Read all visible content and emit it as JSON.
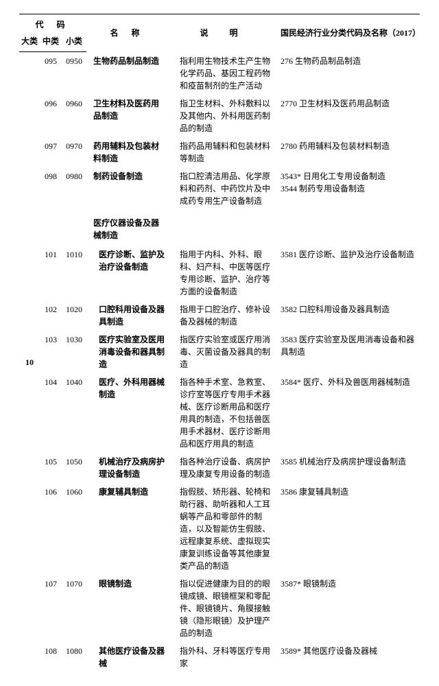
{
  "headers": {
    "code_group": "代 码",
    "da": "大类",
    "zhong": "中类",
    "xiao": "小类",
    "name": "名 称",
    "desc": "说 明",
    "ref": "国民经济行业分类代码及名称（2017）"
  },
  "big_category": "10",
  "rows": [
    {
      "zhong": "095",
      "xiao": "0950",
      "name": "生物药品制品制造",
      "desc": "　指利用生物技术生产生物化学药品、基因工程药物和疫苗制剂的生产活动",
      "ref": "276 生物药品制品制造",
      "cls": "name"
    },
    {
      "zhong": "096",
      "xiao": "0960",
      "name": "卫生材料及医药用品制造",
      "desc": "　指卫生材料、外科敷料以及其他内、外科用医药制品的制造",
      "ref": "2770 卫生材料及医药用品制造",
      "cls": "name"
    },
    {
      "zhong": "097",
      "xiao": "0970",
      "name": "药用辅料及包装材料制造",
      "desc": "　指药品用辅料和包装材料等制造",
      "ref": "2780 药用辅料及包装材料制造",
      "cls": "name"
    },
    {
      "zhong": "098",
      "xiao": "0980",
      "name": "制药设备制造",
      "desc": "　指口腔清洁用品、化学原料和药剂、中药饮片及中成药专用生产设备制造",
      "ref": "3543* 日用化工专用设备制造\n3544 制药专用设备制造",
      "cls": "name"
    },
    {
      "zhong": "",
      "xiao": "",
      "name": "医疗仪器设备及器械制造",
      "desc": "",
      "ref": "",
      "cls": "name",
      "section": true
    },
    {
      "zhong": "101",
      "xiao": "1010",
      "name": "医疗诊断、监护及治疗设备制造",
      "desc": "　指用于内科、外科、眼科、妇产科、中医等医疗专用诊断、监护、治疗等方面的设备制造",
      "ref": "3581 医疗诊断、监护及治疗设备制造",
      "cls": "name-sub"
    },
    {
      "zhong": "102",
      "xiao": "1020",
      "name": "口腔科用设备及器具制造",
      "desc": "　指用于口腔治疗、修补设备及器械的制造",
      "ref": "3582 口腔科用设备及器具制造",
      "cls": "name-sub"
    },
    {
      "zhong": "103",
      "xiao": "1030",
      "name": "医疗实验室及医用消毒设备和器具制造",
      "desc": "　指医疗实验室或医疗用消毒、灭菌设备及器具的制造",
      "ref": "3583 医疗实验室及医用消毒设备和器具制造",
      "cls": "name-sub"
    },
    {
      "zhong": "104",
      "xiao": "1040",
      "name": "医疗、外科用器械制造",
      "desc": "　指各种手术室、急救室、诊疗室等医疗专用手术器械、医疗诊断用品和医疗用具的制造，不包括兽医用手术器材、医疗诊断用品和医疗用具的制造",
      "ref": "3584* 医疗、外科及兽医用器械制造",
      "cls": "name-sub"
    },
    {
      "zhong": "105",
      "xiao": "1050",
      "name": "机械治疗及病房护理设备制造",
      "desc": "　指各种治疗设备、病房护理及康复专用设备的制造",
      "ref": "3585 机械治疗及病房护理设备制造",
      "cls": "name-sub"
    },
    {
      "zhong": "106",
      "xiao": "1060",
      "name": "康复辅具制造",
      "desc": "　指假肢、矫形器、轮椅和助行器、助听器和人工耳蜗等产品和零部件的制造，以及智能仿生假肢、远程康复系统、虚拟现实康复训练设备等其他康复类产品的制造",
      "ref": "3586 康复辅具制造",
      "cls": "name-sub"
    },
    {
      "zhong": "107",
      "xiao": "1070",
      "name": "眼镜制造",
      "desc": "　指以促进健康为目的的眼镜成镜、眼镜框架和零配件、眼镜镜片、角膜接触镜（隐形眼镜）及护理产品的制造",
      "ref": "3587* 眼镜制造",
      "cls": "name-sub"
    },
    {
      "zhong": "108",
      "xiao": "1080",
      "name": "其他医疗设备及器械",
      "desc": "　指外科、牙科等医疗专用家",
      "ref": "3589* 其他医疗设备及器械",
      "cls": "name-sub"
    }
  ]
}
